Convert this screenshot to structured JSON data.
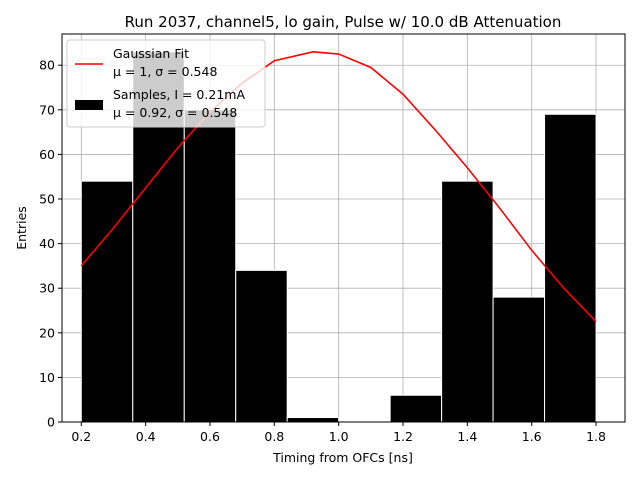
{
  "chart_data": {
    "type": "bar",
    "title": "Run 2037, channel5, lo gain, Pulse w/ 10.0 dB Attenuation",
    "xlabel": "Timing from OFCs [ns]",
    "ylabel": "Entries",
    "xlim": [
      0.14,
      1.89
    ],
    "ylim": [
      0,
      87
    ],
    "xticks": [
      0.2,
      0.4,
      0.6,
      0.8,
      1.0,
      1.2,
      1.4,
      1.6,
      1.8
    ],
    "xtick_labels": [
      "0.2",
      "0.4",
      "0.6",
      "0.8",
      "1.0",
      "1.2",
      "1.4",
      "1.6",
      "1.8"
    ],
    "yticks": [
      0,
      10,
      20,
      30,
      40,
      50,
      60,
      70,
      80
    ],
    "ytick_labels": [
      "0",
      "10",
      "20",
      "30",
      "40",
      "50",
      "60",
      "70",
      "80"
    ],
    "grid": true,
    "legend_position": "top-left",
    "histogram": {
      "name": "Samples, I = 0.21mA",
      "stats": "μ = 0.92, σ = 0.548",
      "color": "#000000",
      "edgecolor": "#ffffff",
      "bin_edges": [
        0.2,
        0.36,
        0.52,
        0.68,
        0.84,
        1.0,
        1.16,
        1.32,
        1.48,
        1.64,
        1.8
      ],
      "counts": [
        54,
        83,
        70,
        34,
        1,
        0,
        6,
        54,
        28,
        69
      ]
    },
    "fit": {
      "name": "Gaussian Fit",
      "stats": "μ = 1, σ = 0.548",
      "color": "#ff0000",
      "x": [
        0.2,
        0.3,
        0.4,
        0.5,
        0.6,
        0.7,
        0.8,
        0.92,
        1.0,
        1.1,
        1.2,
        1.3,
        1.4,
        1.5,
        1.6,
        1.7,
        1.8
      ],
      "y": [
        35,
        43.5,
        52.5,
        61.5,
        69.5,
        76,
        81,
        83,
        82.5,
        79.5,
        73.5,
        65.5,
        57,
        48,
        38.5,
        30,
        22.5
      ]
    }
  }
}
